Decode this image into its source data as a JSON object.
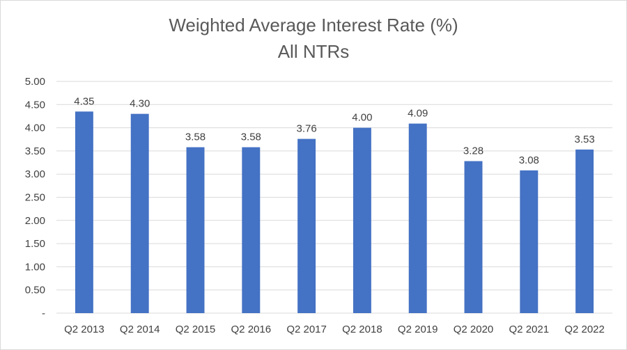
{
  "chart_data": {
    "type": "bar",
    "title": "Weighted Average Interest Rate (%)",
    "subtitle": "All NTRs",
    "categories": [
      "Q2 2013",
      "Q2 2014",
      "Q2 2015",
      "Q2 2016",
      "Q2 2017",
      "Q2 2018",
      "Q2 2019",
      "Q2 2020",
      "Q2 2021",
      "Q2 2022"
    ],
    "values": [
      4.35,
      4.3,
      3.58,
      3.58,
      3.76,
      4.0,
      4.09,
      3.28,
      3.08,
      3.53
    ],
    "data_labels": [
      "4.35",
      "4.30",
      "3.58",
      "3.58",
      "3.76",
      "4.00",
      "4.09",
      "3.28",
      "3.08",
      "3.53"
    ],
    "y_ticks": [
      0,
      0.5,
      1.0,
      1.5,
      2.0,
      2.5,
      3.0,
      3.5,
      4.0,
      4.5,
      5.0
    ],
    "y_tick_labels": [
      "-",
      "0.50",
      "1.00",
      "1.50",
      "2.00",
      "2.50",
      "3.00",
      "3.50",
      "4.00",
      "4.50",
      "5.00"
    ],
    "ylim": [
      0,
      5
    ],
    "xlabel": "",
    "ylabel": "",
    "grid": true,
    "legend": "none",
    "bar_color": "#4472C4",
    "grid_color": "#d9d9d9"
  }
}
